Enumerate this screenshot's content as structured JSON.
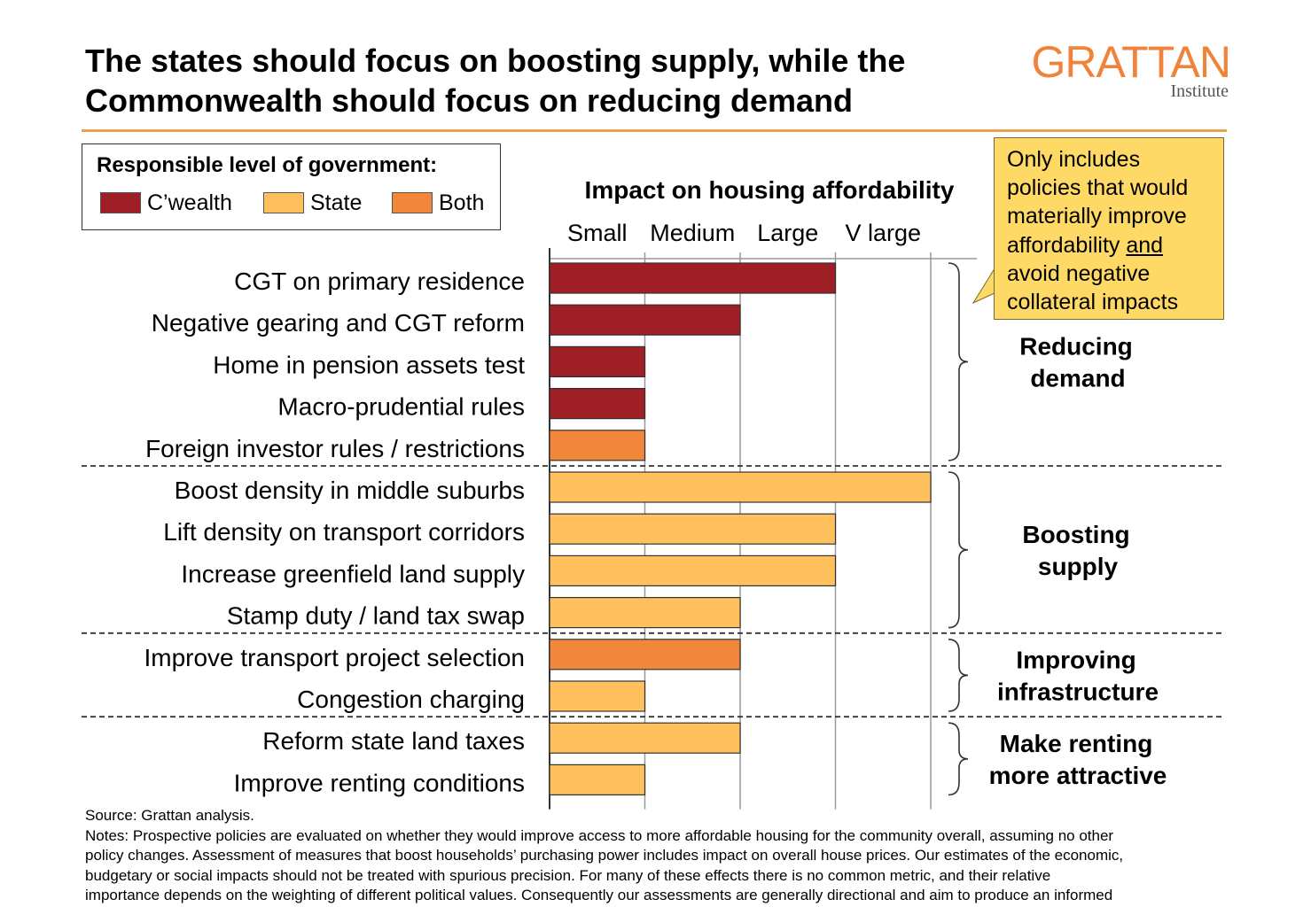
{
  "header": {
    "title_line1": "The states should focus on boosting supply, while the",
    "title_line2": "Commonwealth should focus on reducing demand",
    "logo_main": "GRATTAN",
    "logo_sub": "Institute"
  },
  "legend": {
    "title": "Responsible level of government:",
    "items": [
      {
        "label": "C’wealth",
        "color": "#9E1F26"
      },
      {
        "label": "State",
        "color": "#FFC15E"
      },
      {
        "label": "Both",
        "color": "#F0873A"
      }
    ]
  },
  "callout": {
    "line1": "Only includes",
    "line2": "policies that would",
    "line3": "materially improve",
    "line4_prefix": "affordability ",
    "line4_underlined": "and",
    "line5": "avoid negative",
    "line6": "collateral impacts"
  },
  "chart_data": {
    "type": "bar",
    "orientation": "horizontal",
    "title": "Impact on housing affordability",
    "x_scale": [
      "Small",
      "Medium",
      "Large",
      "V large"
    ],
    "xlim": [
      0,
      4
    ],
    "grid": true,
    "colors": {
      "Cwealth": "#9E1F26",
      "State": "#FFC15E",
      "Both": "#F0873A"
    },
    "categories": [
      "CGT on primary residence",
      "Negative gearing and CGT reform",
      "Home in pension assets test",
      "Macro-prudential rules",
      "Foreign investor rules / restrictions",
      "Boost density in middle suburbs",
      "Lift density on transport corridors",
      "Increase greenfield land supply",
      "Stamp duty / land tax swap",
      "Improve transport project selection",
      "Congestion charging",
      "Reform state land taxes",
      "Improve renting conditions"
    ],
    "values": [
      3,
      2,
      1,
      1,
      1,
      4,
      3,
      3,
      2,
      2,
      1,
      2,
      1
    ],
    "responsible": [
      "Cwealth",
      "Cwealth",
      "Cwealth",
      "Cwealth",
      "Both",
      "State",
      "State",
      "State",
      "State",
      "Both",
      "State",
      "State",
      "State"
    ],
    "groups": [
      {
        "label_line1": "Reducing",
        "label_line2": "demand",
        "start": 0,
        "end": 4
      },
      {
        "label_line1": "Boosting",
        "label_line2": "supply",
        "start": 5,
        "end": 8
      },
      {
        "label_line1": "Improving",
        "label_line2": "infrastructure",
        "start": 9,
        "end": 10
      },
      {
        "label_line1": "Make renting",
        "label_line2": "more attractive",
        "start": 11,
        "end": 12
      }
    ]
  },
  "notes": {
    "source": "Source: Grattan analysis.",
    "line1": "Notes: Prospective policies are evaluated on whether they would improve access to more affordable housing for the community overall, assuming no other",
    "line2": "policy changes. Assessment of measures that boost households’ purchasing power includes impact on overall house prices. Our estimates of the economic,",
    "line3": "budgetary or social impacts should not be treated with spurious precision. For many of these effects there is no common metric, and their relative",
    "line4": "importance depends on the weighting of different political values. Consequently our assessments are generally directional and aim to produce an informed"
  }
}
